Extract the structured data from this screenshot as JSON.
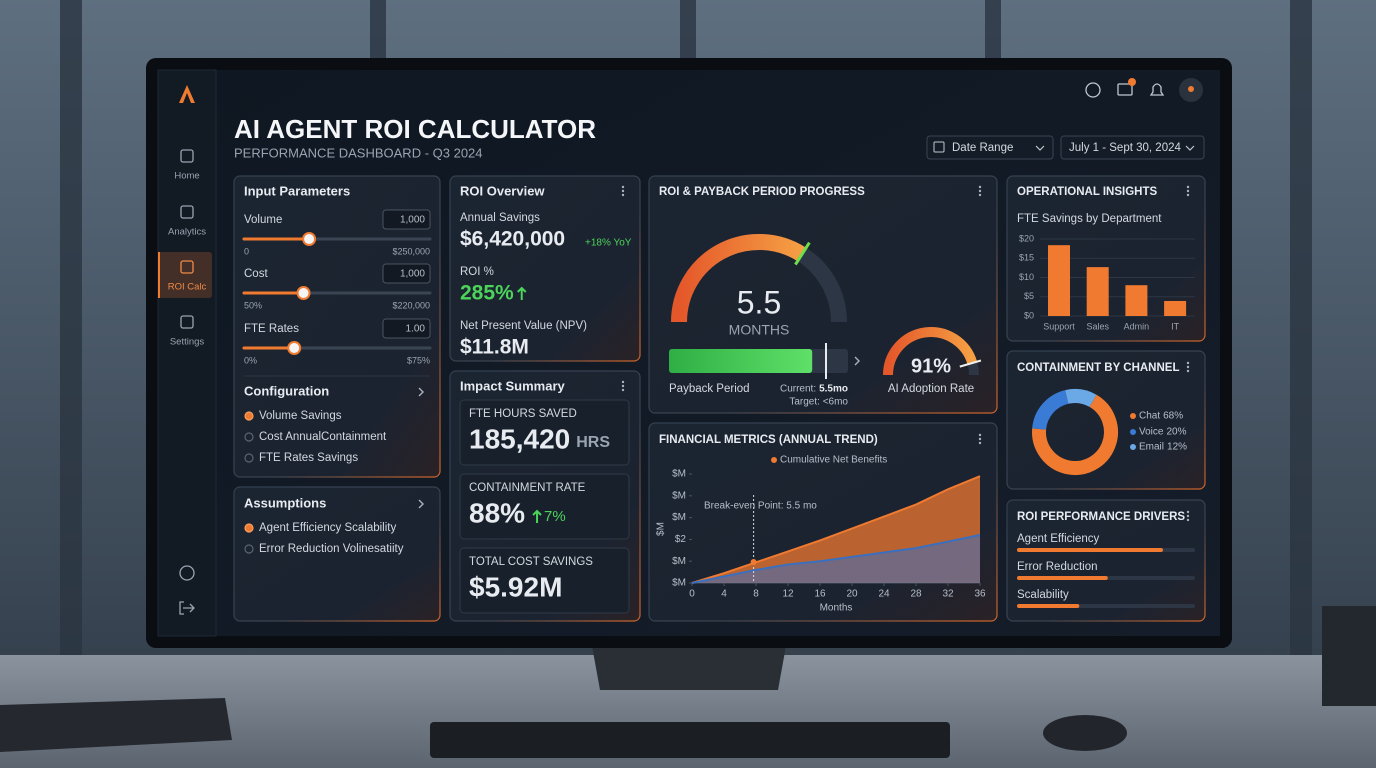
{
  "sidebar": {
    "items": [
      "Home",
      "Analytics",
      "ROI Calc",
      "Settings"
    ],
    "active": 2
  },
  "header": {
    "title": "AI AGENT ROI CALCULATOR",
    "subtitle": "PERFORMANCE DASHBOARD - Q3 2024",
    "date_range_label": "Date Range",
    "date_range": "July 1 - Sept 30, 2024"
  },
  "input_parameters": {
    "title": "Input Parameters",
    "sliders": [
      {
        "label": "Volume",
        "input": "1,000",
        "min": "0",
        "max": "$250,000",
        "position": 35
      },
      {
        "label": "Cost",
        "input": "1,000",
        "min": "50%",
        "max": "$220,000",
        "position": 32
      },
      {
        "label": "FTE Rates",
        "input": "1.00",
        "min": "0%",
        "max": "$75%",
        "position": 27
      }
    ],
    "configuration": {
      "title": "Configuration",
      "options": [
        "Volume Savings",
        "Cost AnnualContainment",
        "FTE Rates Savings"
      ],
      "selected": 0
    }
  },
  "assumptions": {
    "title": "Assumptions",
    "options": [
      "Agent Efficiency Scalability",
      "Error Reduction Volinesatiity"
    ],
    "selected": 0
  },
  "roi_overview": {
    "title": "ROI Overview",
    "annual_savings_label": "Annual Savings",
    "annual_savings": "$6,420,000",
    "annual_savings_change": "+18% YoY",
    "roi_label": "ROI %",
    "roi": "285%",
    "npv_label": "Net Present Value (NPV)",
    "npv": "$11.8M"
  },
  "impact_summary": {
    "title": "Impact Summary",
    "cards": [
      {
        "label": "FTE HOURS SAVED",
        "value": "185,420",
        "unit": "HRS"
      },
      {
        "label": "CONTAINMENT RATE",
        "value": "88%",
        "change": "7%"
      },
      {
        "label": "TOTAL COST SAVINGS",
        "value": "$5.92M"
      }
    ]
  },
  "payback": {
    "title": "ROI & PAYBACK PERIOD PROGRESS",
    "gauge_value": "5.5",
    "gauge_unit": "MONTHS",
    "gauge_fill": 68,
    "progress_label": "Payback Period",
    "progress_fill": 80,
    "current_label": "Current:",
    "current_value": "5.5mo",
    "target": "Target: <6mo",
    "adoption": {
      "value": 91,
      "label": "91%"
    },
    "adoption_label": "AI Adoption Rate"
  },
  "financial_metrics": {
    "type": "area",
    "title": "FINANCIAL METRICS (ANNUAL TREND)",
    "annotation": "Break-even Point: 5.5 mo",
    "break_even_x": 7.7,
    "y_label": "$M",
    "x_label": "Months",
    "x": [
      0,
      4,
      8,
      12,
      16,
      20,
      24,
      28,
      32,
      36
    ],
    "series": [
      {
        "name": "Cumulative Net Benefits",
        "color": "#f07a30",
        "values": [
          0,
          0.45,
          0.95,
          1.45,
          1.95,
          2.5,
          3.05,
          3.6,
          4.3,
          4.9
        ]
      },
      {
        "color": "#3a6fc0",
        "values": [
          0,
          0.3,
          0.6,
          0.85,
          1.0,
          1.2,
          1.4,
          1.6,
          1.9,
          2.2
        ]
      }
    ],
    "xlim": [
      0,
      36
    ],
    "ylim": [
      0,
      5
    ],
    "xticks": [
      0,
      4,
      8,
      12,
      16,
      20,
      24,
      28,
      32,
      36
    ],
    "yticks": [
      {
        "value": 0,
        "label": "$M"
      },
      {
        "value": 1,
        "label": "$M"
      },
      {
        "value": 2,
        "label": "$2"
      },
      {
        "value": 3,
        "label": "$M"
      },
      {
        "value": 4,
        "label": "$M"
      },
      {
        "value": 5,
        "label": "$M"
      }
    ]
  },
  "operational_insights": {
    "title": "OPERATIONAL INSIGHTS",
    "chart": {
      "type": "bar",
      "subtitle": "FTE Savings by Department",
      "categories": [
        "Support",
        "Sales",
        "Admin",
        "IT"
      ],
      "values": [
        18.4,
        12.7,
        8,
        3.9
      ],
      "color": "#f07a30",
      "ylim": [
        0,
        20
      ],
      "yticks": [
        {
          "value": 0,
          "label": "$0"
        },
        {
          "value": 5,
          "label": "$5"
        },
        {
          "value": 10,
          "label": "$10"
        },
        {
          "value": 15,
          "label": "$15"
        },
        {
          "value": 20,
          "label": "$20"
        }
      ],
      "grid": true
    }
  },
  "containment": {
    "title": "CONTAINMENT BY CHANNEL",
    "chart": {
      "type": "donut",
      "categories": [
        "Chat",
        "Voice",
        "Email"
      ],
      "values": [
        68,
        20,
        12
      ],
      "value_labels": [
        "68%",
        "20%",
        "12%"
      ],
      "colors": [
        "#f07a30",
        "#3a7bd5",
        "#6aa8e6"
      ]
    }
  },
  "drivers": {
    "title": "ROI PERFORMANCE DRIVERS",
    "color": "#f07a30",
    "items": [
      {
        "label": "Agent Efficiency",
        "value": 82
      },
      {
        "label": "Error Reduction",
        "value": 51
      },
      {
        "label": "Scalability",
        "value": 35
      }
    ]
  }
}
